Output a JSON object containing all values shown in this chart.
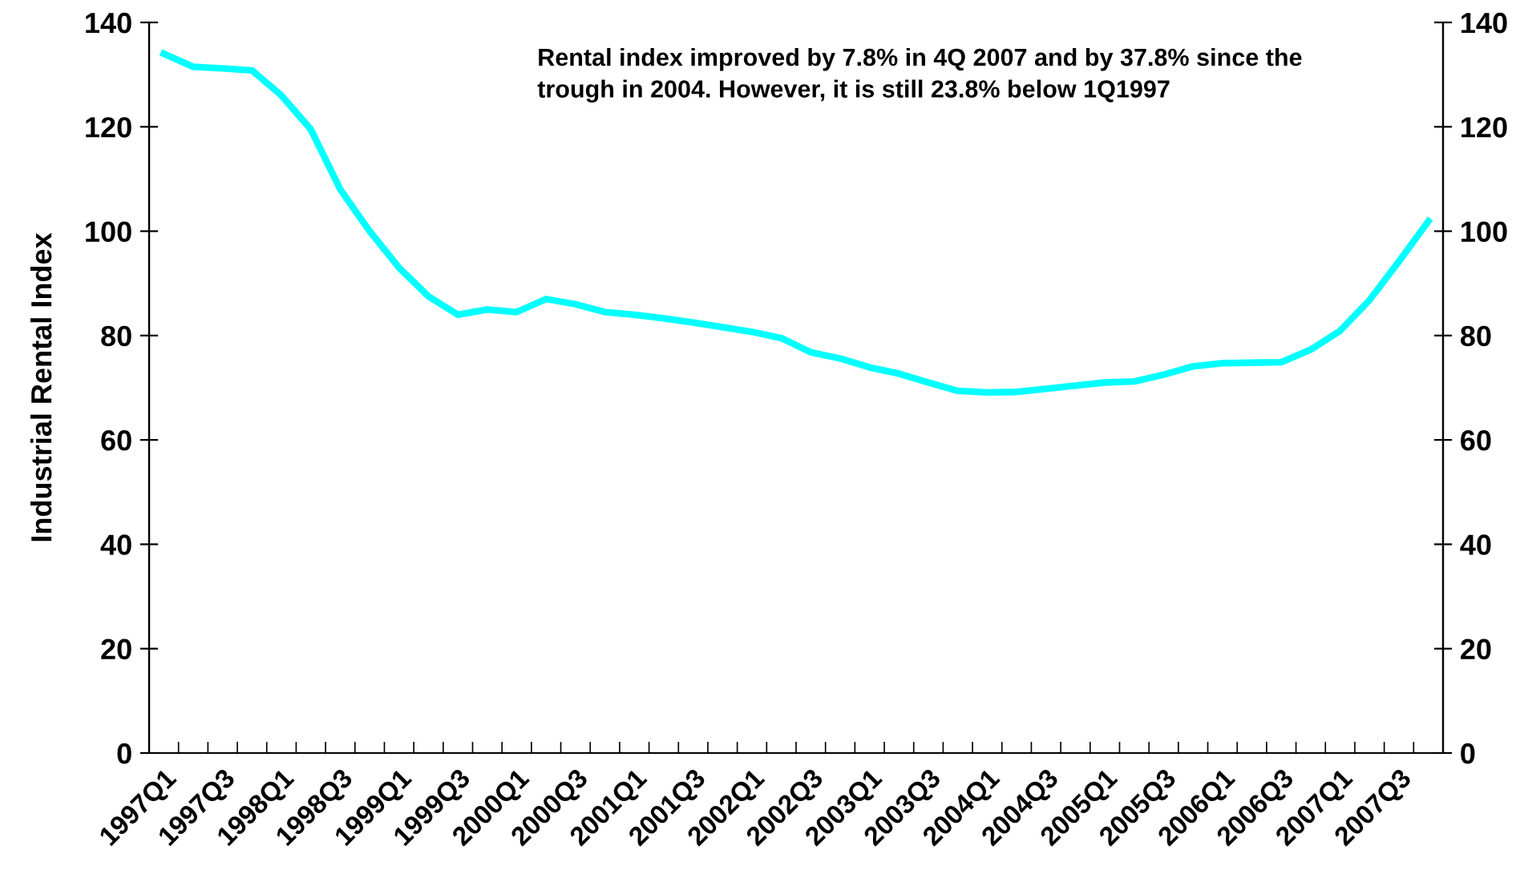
{
  "chart_data": {
    "type": "line",
    "ylabel": "Industrial Rental Index",
    "categories": [
      "1997Q1",
      null,
      "1997Q3",
      null,
      "1998Q1",
      null,
      "1998Q3",
      null,
      "1999Q1",
      null,
      "1999Q3",
      null,
      "2000Q1",
      null,
      "2000Q3",
      null,
      "2001Q1",
      null,
      "2001Q3",
      null,
      "2002Q1",
      null,
      "2002Q3",
      null,
      "2003Q1",
      null,
      "2003Q3",
      null,
      "2004Q1",
      null,
      "2004Q3",
      null,
      "2005Q1",
      null,
      "2005Q3",
      null,
      "2006Q1",
      null,
      "2006Q3",
      null,
      "2007Q1",
      null,
      "2007Q3",
      null
    ],
    "series": [
      {
        "color": "#00ffff",
        "values": [
          134,
          131.5,
          131.2,
          130.8,
          126,
          119.5,
          108,
          100,
          93,
          87.5,
          84,
          85,
          84.5,
          87,
          86,
          84.5,
          84,
          83.3,
          82.5,
          81.6,
          80.7,
          79.5,
          76.8,
          75.6,
          73.9,
          72.7,
          71,
          69.4,
          69.1,
          69.2,
          69.8,
          70.4,
          71,
          71.2,
          72.5,
          74.1,
          74.7,
          74.8,
          74.9,
          77.3,
          80.9,
          86.8,
          94.2,
          101.9
        ]
      }
    ],
    "ylim": [
      0,
      140
    ],
    "yticks": [
      0,
      20,
      40,
      60,
      80,
      100,
      120,
      140
    ],
    "y2lim": [
      0,
      140
    ],
    "y2ticks": [
      0,
      20,
      40,
      60,
      80,
      100,
      120,
      140
    ],
    "grid": false,
    "legend": false,
    "marker": "none",
    "line_style": "solid",
    "annotations": [
      "Rental index improved by 7.8% in 4Q 2007 and by 37.8% since the trough in 2004. However, it is still 23.8% below 1Q1997"
    ]
  }
}
